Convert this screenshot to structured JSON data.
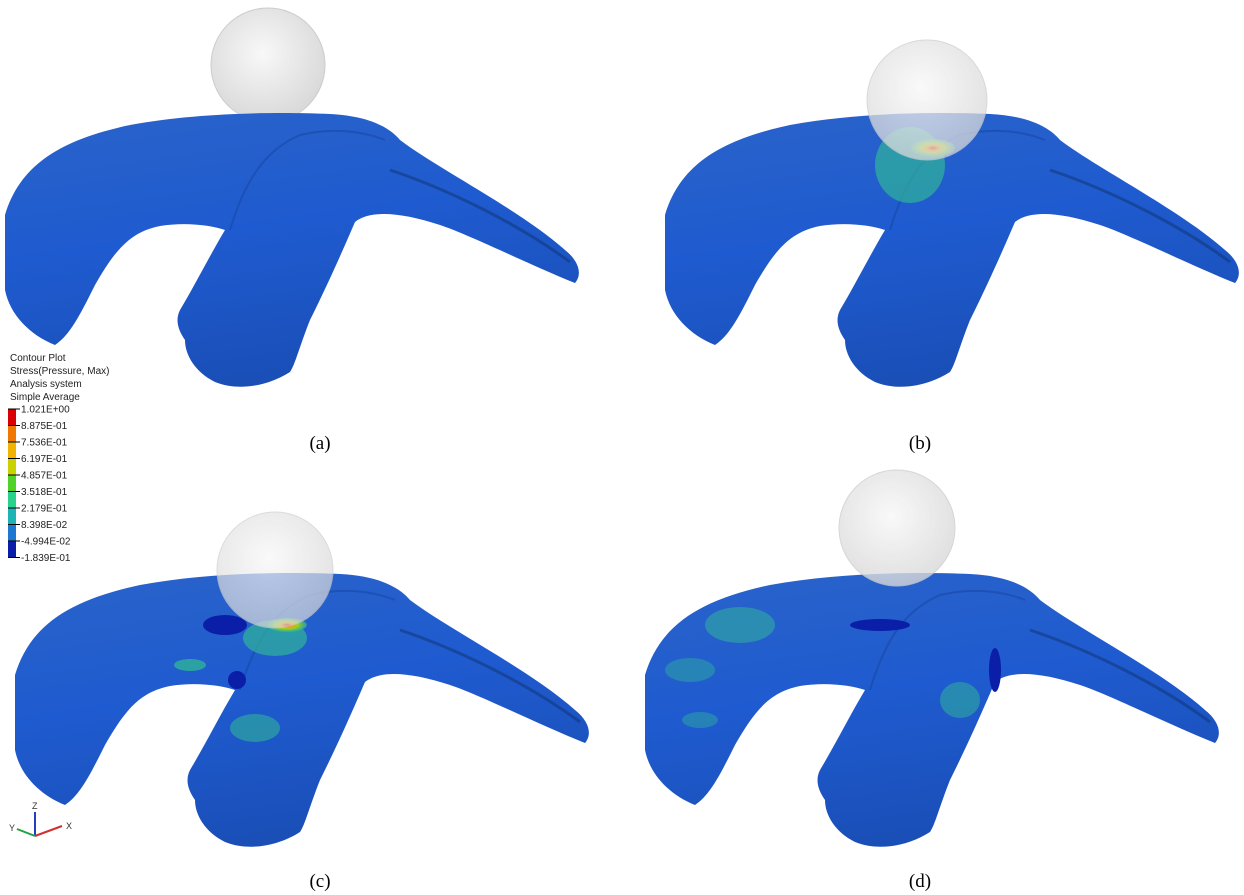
{
  "legend": {
    "title_lines": [
      "Contour Plot",
      "Stress(Pressure, Max)",
      "Analysis system",
      "Simple Average"
    ],
    "levels": [
      "1.021E+00",
      "8.875E-01",
      "7.536E-01",
      "6.197E-01",
      "4.857E-01",
      "3.518E-01",
      "2.179E-01",
      "8.398E-02",
      "-4.994E-02",
      "-1.839E-01"
    ]
  },
  "panels": [
    {
      "label": "(a)"
    },
    {
      "label": "(b)"
    },
    {
      "label": "(c)"
    },
    {
      "label": "(d)"
    }
  ],
  "triad": {
    "z": "Z",
    "y": "Y",
    "x": "X"
  }
}
